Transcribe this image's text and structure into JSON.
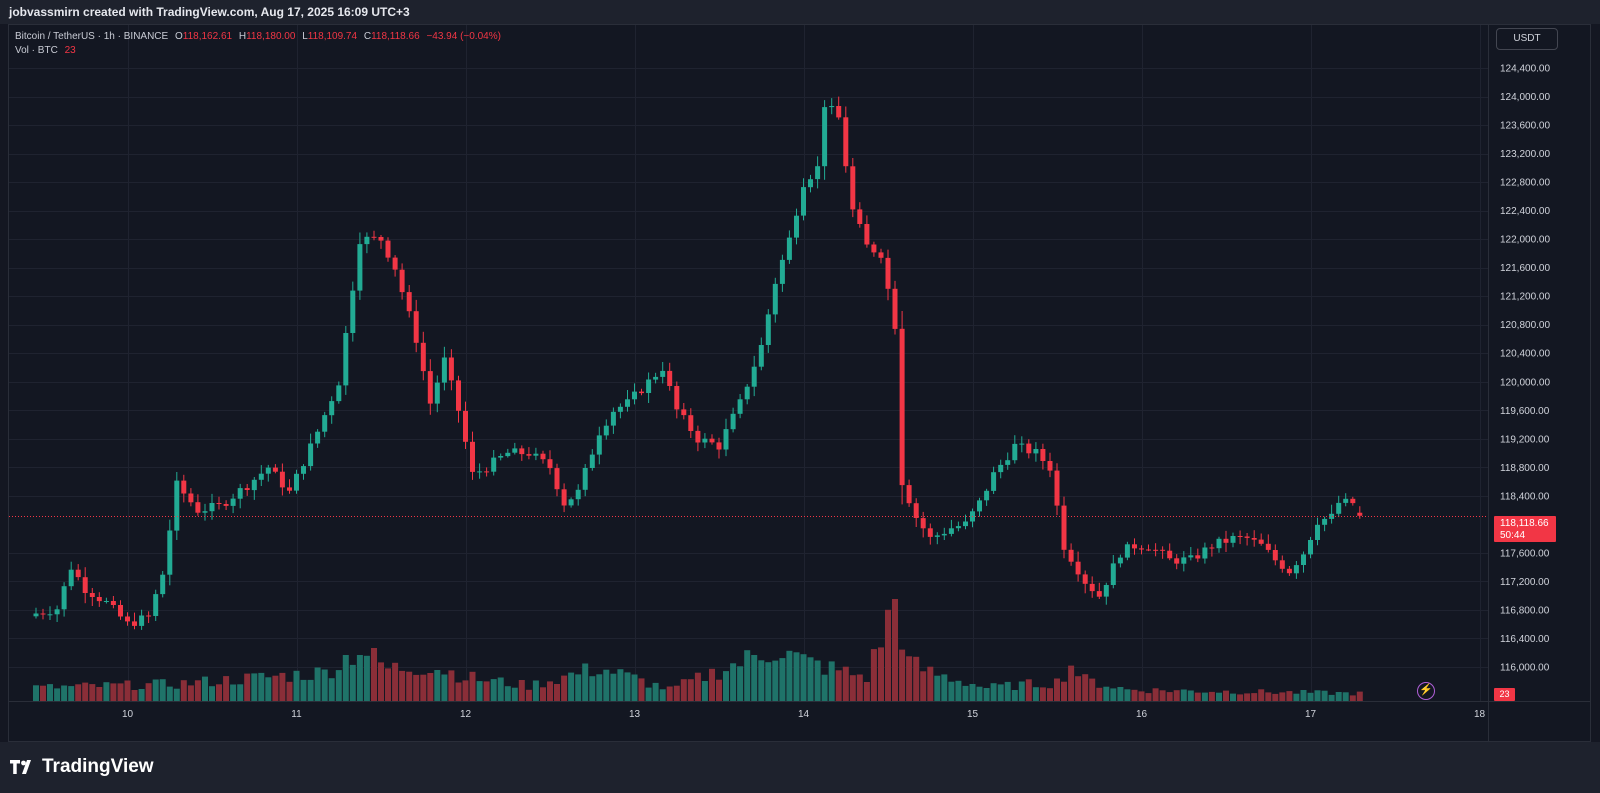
{
  "header": {
    "attribution": "jobvassmirn created with TradingView.com, Aug 17, 2025 16:09 UTC+3"
  },
  "legend": {
    "symbol": "Bitcoin / TetherUS · 1h · BINANCE",
    "open_label": "O",
    "open": "118,162.61",
    "high_label": "H",
    "high": "118,180.00",
    "low_label": "L",
    "low": "118,109.74",
    "close_label": "C",
    "close": "118,118.66",
    "change": "−43.94 (−0.04%)",
    "volume_label": "Vol · BTC",
    "volume": "23"
  },
  "currency_button": "USDT",
  "last_price": {
    "price": "118,118.66",
    "countdown": "50:44",
    "value": 118118.66
  },
  "volume_tag": "23",
  "brand": {
    "name": "TradingView"
  },
  "colors": {
    "up": "#22ab94",
    "down": "#f23645",
    "up_vol": "#1f7369",
    "down_vol": "#8a2e38",
    "background": "#131722"
  },
  "chart_data": {
    "type": "candlestick",
    "interval": "1h",
    "price_ticks": [
      {
        "value": 124400,
        "label": "124,400.00"
      },
      {
        "value": 124000,
        "label": "124,000.00"
      },
      {
        "value": 123600,
        "label": "123,600.00"
      },
      {
        "value": 123200,
        "label": "123,200.00"
      },
      {
        "value": 122800,
        "label": "122,800.00"
      },
      {
        "value": 122400,
        "label": "122,400.00"
      },
      {
        "value": 122000,
        "label": "122,000.00"
      },
      {
        "value": 121600,
        "label": "121,600.00"
      },
      {
        "value": 121200,
        "label": "121,200.00"
      },
      {
        "value": 120800,
        "label": "120,800.00"
      },
      {
        "value": 120400,
        "label": "120,400.00"
      },
      {
        "value": 120000,
        "label": "120,000.00"
      },
      {
        "value": 119600,
        "label": "119,600.00"
      },
      {
        "value": 119200,
        "label": "119,200.00"
      },
      {
        "value": 118800,
        "label": "118,800.00"
      },
      {
        "value": 118400,
        "label": "118,400.00"
      },
      {
        "value": 117600,
        "label": "117,600.00"
      },
      {
        "value": 117200,
        "label": "117,200.00"
      },
      {
        "value": 116800,
        "label": "116,800.00"
      },
      {
        "value": 116400,
        "label": "116,400.00"
      },
      {
        "value": 116000,
        "label": "116,000.00"
      }
    ],
    "price_range": [
      115650,
      124850
    ],
    "day_ticks": [
      {
        "hour": 13,
        "label": "10"
      },
      {
        "hour": 37,
        "label": "11"
      },
      {
        "hour": 61,
        "label": "12"
      },
      {
        "hour": 85,
        "label": "13"
      },
      {
        "hour": 109,
        "label": "14"
      },
      {
        "hour": 133,
        "label": "15"
      },
      {
        "hour": 157,
        "label": "16"
      },
      {
        "hour": 181,
        "label": "17"
      },
      {
        "hour": 205,
        "label": "18"
      }
    ],
    "close_anchors": [
      [
        0,
        116750
      ],
      [
        3,
        116820
      ],
      [
        5,
        117400
      ],
      [
        7,
        117100
      ],
      [
        10,
        116900
      ],
      [
        13,
        116600
      ],
      [
        16,
        116700
      ],
      [
        18,
        117300
      ],
      [
        20,
        118550
      ],
      [
        23,
        118200
      ],
      [
        26,
        118250
      ],
      [
        30,
        118550
      ],
      [
        33,
        118800
      ],
      [
        36,
        118450
      ],
      [
        40,
        119300
      ],
      [
        43,
        120000
      ],
      [
        46,
        122000
      ],
      [
        49,
        122000
      ],
      [
        51,
        121600
      ],
      [
        54,
        120600
      ],
      [
        56,
        119700
      ],
      [
        58,
        120300
      ],
      [
        60,
        119600
      ],
      [
        62,
        118700
      ],
      [
        64,
        118800
      ],
      [
        67,
        119000
      ],
      [
        70,
        119000
      ],
      [
        73,
        118800
      ],
      [
        75,
        118300
      ],
      [
        77,
        118450
      ],
      [
        80,
        119300
      ],
      [
        82,
        119600
      ],
      [
        84,
        119700
      ],
      [
        86,
        119900
      ],
      [
        89,
        120200
      ],
      [
        91,
        119600
      ],
      [
        94,
        119200
      ],
      [
        97,
        119100
      ],
      [
        100,
        119700
      ],
      [
        103,
        120500
      ],
      [
        105,
        121400
      ],
      [
        107,
        122000
      ],
      [
        109,
        122800
      ],
      [
        111,
        123000
      ],
      [
        112,
        123900
      ],
      [
        114,
        123700
      ],
      [
        116,
        122400
      ],
      [
        118,
        121900
      ],
      [
        120,
        121800
      ],
      [
        122,
        120800
      ],
      [
        123,
        118600
      ],
      [
        125,
        118100
      ],
      [
        127,
        117800
      ],
      [
        130,
        117950
      ],
      [
        132,
        118000
      ],
      [
        134,
        118300
      ],
      [
        136,
        118700
      ],
      [
        139,
        119100
      ],
      [
        142,
        119000
      ],
      [
        144,
        118800
      ],
      [
        146,
        117700
      ],
      [
        149,
        117200
      ],
      [
        151,
        117000
      ],
      [
        154,
        117600
      ],
      [
        156,
        117700
      ],
      [
        158,
        117700
      ],
      [
        161,
        117500
      ],
      [
        164,
        117500
      ],
      [
        167,
        117700
      ],
      [
        170,
        117800
      ],
      [
        172,
        117800
      ],
      [
        174,
        117700
      ],
      [
        176,
        117500
      ],
      [
        178,
        117350
      ],
      [
        180,
        117600
      ],
      [
        182,
        118050
      ],
      [
        184,
        118100
      ],
      [
        185,
        118300
      ],
      [
        187,
        118300
      ],
      [
        188,
        118120
      ]
    ],
    "volume_profile": [
      [
        0,
        14
      ],
      [
        20,
        18
      ],
      [
        41,
        30
      ],
      [
        46,
        55
      ],
      [
        50,
        34
      ],
      [
        56,
        37
      ],
      [
        62,
        24
      ],
      [
        70,
        16
      ],
      [
        80,
        35
      ],
      [
        90,
        12
      ],
      [
        105,
        55
      ],
      [
        109,
        42
      ],
      [
        113,
        34
      ],
      [
        118,
        25
      ],
      [
        122,
        105
      ],
      [
        124,
        40
      ],
      [
        127,
        30
      ],
      [
        135,
        14
      ],
      [
        145,
        20
      ],
      [
        147,
        38
      ],
      [
        149,
        22
      ],
      [
        155,
        12
      ],
      [
        170,
        10
      ],
      [
        188,
        8
      ]
    ]
  }
}
